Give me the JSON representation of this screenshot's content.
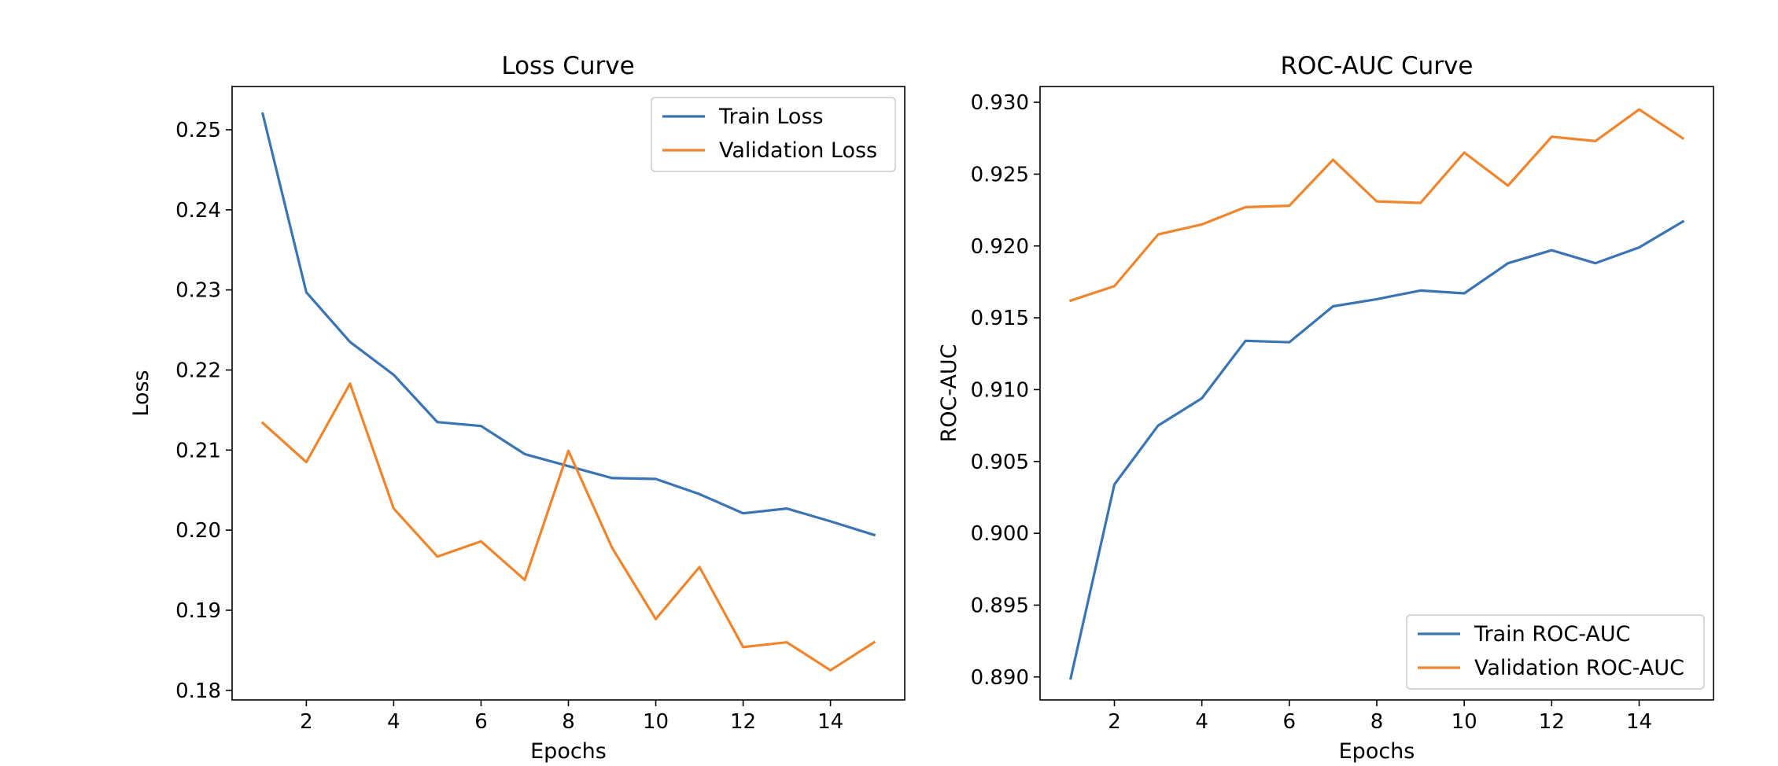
{
  "colors": {
    "train": "#3a74b2",
    "validation": "#f0852b"
  },
  "chart_data": [
    {
      "type": "line",
      "title": "Loss Curve",
      "xlabel": "Epochs",
      "ylabel": "Loss",
      "xlim": [
        0.3,
        15.7
      ],
      "ylim": [
        0.1788,
        0.2554
      ],
      "xticks": [
        2,
        4,
        6,
        8,
        10,
        12,
        14
      ],
      "yticks": [
        0.18,
        0.19,
        0.2,
        0.21,
        0.22,
        0.23,
        0.24,
        0.25
      ],
      "ytick_labels": [
        "0.18",
        "0.19",
        "0.20",
        "0.21",
        "0.22",
        "0.23",
        "0.24",
        "0.25"
      ],
      "legend_position": "top-right",
      "x": [
        1,
        2,
        3,
        4,
        5,
        6,
        7,
        8,
        9,
        10,
        11,
        12,
        13,
        14,
        15
      ],
      "series": [
        {
          "name": "Train Loss",
          "color": "#3a74b2",
          "values": [
            0.252,
            0.2297,
            0.2235,
            0.2194,
            0.2135,
            0.213,
            0.2095,
            0.208,
            0.2065,
            0.2064,
            0.2045,
            0.2021,
            0.2027,
            0.2011,
            0.1994
          ]
        },
        {
          "name": "Validation Loss",
          "color": "#f0852b",
          "values": [
            0.2134,
            0.2085,
            0.2183,
            0.2027,
            0.1967,
            0.1986,
            0.1938,
            0.2099,
            0.1978,
            0.1889,
            0.1954,
            0.1854,
            0.186,
            0.1825,
            0.186
          ]
        }
      ]
    },
    {
      "type": "line",
      "title": "ROC-AUC Curve",
      "xlabel": "Epochs",
      "ylabel": "ROC-AUC",
      "xlim": [
        0.3,
        15.7
      ],
      "ylim": [
        0.8884,
        0.9311
      ],
      "xticks": [
        2,
        4,
        6,
        8,
        10,
        12,
        14
      ],
      "yticks": [
        0.89,
        0.895,
        0.9,
        0.905,
        0.91,
        0.915,
        0.92,
        0.925,
        0.93
      ],
      "ytick_labels": [
        "0.890",
        "0.895",
        "0.900",
        "0.905",
        "0.910",
        "0.915",
        "0.920",
        "0.925",
        "0.930"
      ],
      "legend_position": "bottom-right",
      "x": [
        1,
        2,
        3,
        4,
        5,
        6,
        7,
        8,
        9,
        10,
        11,
        12,
        13,
        14,
        15
      ],
      "series": [
        {
          "name": "Train ROC-AUC",
          "color": "#3a74b2",
          "values": [
            0.8899,
            0.9034,
            0.9075,
            0.9094,
            0.9134,
            0.9133,
            0.9158,
            0.9163,
            0.9169,
            0.9167,
            0.9188,
            0.9197,
            0.9188,
            0.9199,
            0.9217
          ]
        },
        {
          "name": "Validation ROC-AUC",
          "color": "#f0852b",
          "values": [
            0.9162,
            0.9172,
            0.9208,
            0.9215,
            0.9227,
            0.9228,
            0.926,
            0.9231,
            0.923,
            0.9265,
            0.9242,
            0.9276,
            0.9273,
            0.9295,
            0.9275
          ]
        }
      ]
    }
  ]
}
